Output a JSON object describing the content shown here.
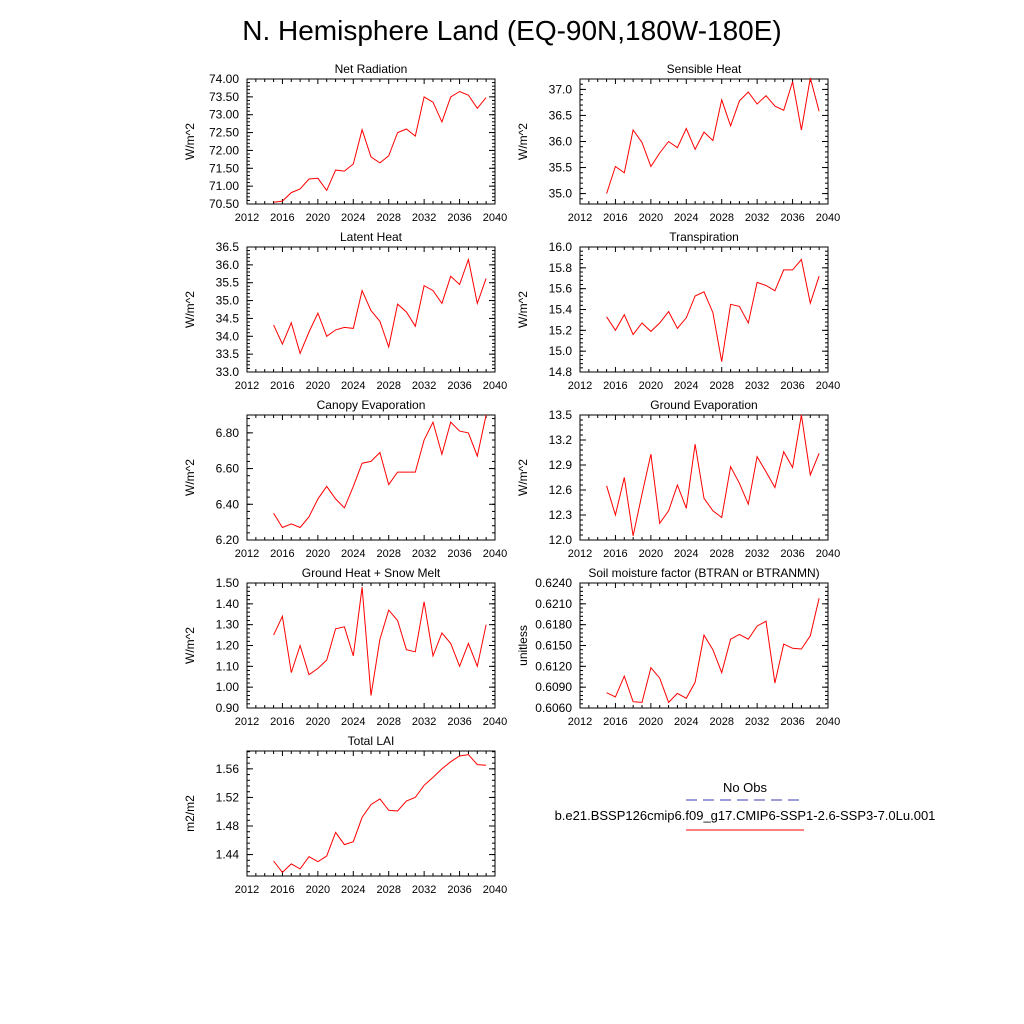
{
  "figure": {
    "title": "N. Hemisphere Land (EQ-90N,180W-180E)",
    "legend": {
      "obs_label": "No Obs",
      "obs_color": "#3b3bb3",
      "model_label": "b.e21.BSSP126cmip6.f09_g17.CMIP6-SSP1-2.6-SSP3-7.0Lu.001",
      "model_color": "#ff0000"
    }
  },
  "chart_data": [
    {
      "type": "line",
      "title": "Net Radiation",
      "ylabel": "W/m^2",
      "xlim": [
        2012,
        2040
      ],
      "xticks": [
        "2012",
        "2016",
        "2020",
        "2024",
        "2028",
        "2032",
        "2036",
        "2040"
      ],
      "ylim": [
        70.5,
        74.0
      ],
      "yticks": [
        "70.50",
        "71.00",
        "71.50",
        "72.00",
        "72.50",
        "73.00",
        "73.50",
        "74.00"
      ],
      "x": [
        2015,
        2016,
        2017,
        2018,
        2019,
        2020,
        2021,
        2022,
        2023,
        2024,
        2025,
        2026,
        2027,
        2028,
        2029,
        2030,
        2031,
        2032,
        2033,
        2034,
        2035,
        2036,
        2037,
        2038,
        2039
      ],
      "values": [
        70.55,
        70.58,
        70.82,
        70.92,
        71.2,
        71.22,
        70.88,
        71.45,
        71.42,
        71.62,
        72.58,
        71.82,
        71.65,
        71.85,
        72.5,
        72.6,
        72.4,
        73.5,
        73.35,
        72.8,
        73.5,
        73.65,
        73.55,
        73.18,
        73.48
      ]
    },
    {
      "type": "line",
      "title": "Sensible Heat",
      "ylabel": "W/m^2",
      "xlim": [
        2012,
        2040
      ],
      "xticks": [
        "2012",
        "2016",
        "2020",
        "2024",
        "2028",
        "2032",
        "2036",
        "2040"
      ],
      "ylim": [
        34.8,
        37.2
      ],
      "yticks": [
        "35.0",
        "35.5",
        "36.0",
        "36.5",
        "37.0"
      ],
      "x": [
        2015,
        2016,
        2017,
        2018,
        2019,
        2020,
        2021,
        2022,
        2023,
        2024,
        2025,
        2026,
        2027,
        2028,
        2029,
        2030,
        2031,
        2032,
        2033,
        2034,
        2035,
        2036,
        2037,
        2038,
        2039
      ],
      "values": [
        35.0,
        35.52,
        35.4,
        36.22,
        35.98,
        35.52,
        35.78,
        36.0,
        35.88,
        36.25,
        35.85,
        36.18,
        36.02,
        36.8,
        36.3,
        36.78,
        36.95,
        36.72,
        36.88,
        36.68,
        36.6,
        37.15,
        36.22,
        37.22,
        36.58
      ]
    },
    {
      "type": "line",
      "title": "Latent Heat",
      "ylabel": "W/m^2",
      "xlim": [
        2012,
        2040
      ],
      "xticks": [
        "2012",
        "2016",
        "2020",
        "2024",
        "2028",
        "2032",
        "2036",
        "2040"
      ],
      "ylim": [
        33.0,
        36.5
      ],
      "yticks": [
        "33.0",
        "33.5",
        "34.0",
        "34.5",
        "35.0",
        "35.5",
        "36.0",
        "36.5"
      ],
      "x": [
        2015,
        2016,
        2017,
        2018,
        2019,
        2020,
        2021,
        2022,
        2023,
        2024,
        2025,
        2026,
        2027,
        2028,
        2029,
        2030,
        2031,
        2032,
        2033,
        2034,
        2035,
        2036,
        2037,
        2038,
        2039
      ],
      "values": [
        34.32,
        33.78,
        34.38,
        33.52,
        34.12,
        34.65,
        34.0,
        34.18,
        34.25,
        34.22,
        35.28,
        34.72,
        34.42,
        33.7,
        34.9,
        34.68,
        34.28,
        35.42,
        35.28,
        34.92,
        35.68,
        35.45,
        36.15,
        34.92,
        35.62
      ]
    },
    {
      "type": "line",
      "title": "Transpiration",
      "ylabel": "W/m^2",
      "xlim": [
        2012,
        2040
      ],
      "xticks": [
        "2012",
        "2016",
        "2020",
        "2024",
        "2028",
        "2032",
        "2036",
        "2040"
      ],
      "ylim": [
        14.8,
        16.0
      ],
      "yticks": [
        "14.8",
        "15.0",
        "15.2",
        "15.4",
        "15.6",
        "15.8",
        "16.0"
      ],
      "x": [
        2015,
        2016,
        2017,
        2018,
        2019,
        2020,
        2021,
        2022,
        2023,
        2024,
        2025,
        2026,
        2027,
        2028,
        2029,
        2030,
        2031,
        2032,
        2033,
        2034,
        2035,
        2036,
        2037,
        2038,
        2039
      ],
      "values": [
        15.33,
        15.2,
        15.35,
        15.16,
        15.27,
        15.19,
        15.27,
        15.38,
        15.22,
        15.32,
        15.53,
        15.57,
        15.37,
        14.9,
        15.45,
        15.43,
        15.27,
        15.66,
        15.63,
        15.58,
        15.78,
        15.78,
        15.88,
        15.46,
        15.72
      ]
    },
    {
      "type": "line",
      "title": "Canopy Evaporation",
      "ylabel": "W/m^2",
      "xlim": [
        2012,
        2040
      ],
      "xticks": [
        "2012",
        "2016",
        "2020",
        "2024",
        "2028",
        "2032",
        "2036",
        "2040"
      ],
      "ylim": [
        6.2,
        6.9
      ],
      "yticks": [
        "6.20",
        "6.40",
        "6.60",
        "6.80"
      ],
      "x": [
        2015,
        2016,
        2017,
        2018,
        2019,
        2020,
        2021,
        2022,
        2023,
        2024,
        2025,
        2026,
        2027,
        2028,
        2029,
        2030,
        2031,
        2032,
        2033,
        2034,
        2035,
        2036,
        2037,
        2038,
        2039
      ],
      "values": [
        6.35,
        6.27,
        6.29,
        6.27,
        6.33,
        6.43,
        6.5,
        6.43,
        6.38,
        6.5,
        6.63,
        6.64,
        6.69,
        6.51,
        6.58,
        6.58,
        6.58,
        6.76,
        6.86,
        6.68,
        6.86,
        6.81,
        6.8,
        6.67,
        6.9
      ]
    },
    {
      "type": "line",
      "title": "Ground Evaporation",
      "ylabel": "W/m^2",
      "xlim": [
        2012,
        2040
      ],
      "xticks": [
        "2012",
        "2016",
        "2020",
        "2024",
        "2028",
        "2032",
        "2036",
        "2040"
      ],
      "ylim": [
        12.0,
        13.5
      ],
      "yticks": [
        "12.0",
        "12.3",
        "12.6",
        "12.9",
        "13.2",
        "13.5"
      ],
      "x": [
        2015,
        2016,
        2017,
        2018,
        2019,
        2020,
        2021,
        2022,
        2023,
        2024,
        2025,
        2026,
        2027,
        2028,
        2029,
        2030,
        2031,
        2032,
        2033,
        2034,
        2035,
        2036,
        2037,
        2038,
        2039
      ],
      "values": [
        12.65,
        12.3,
        12.75,
        12.05,
        12.55,
        13.03,
        12.2,
        12.35,
        12.66,
        12.38,
        13.15,
        12.5,
        12.35,
        12.27,
        12.88,
        12.68,
        12.43,
        13.0,
        12.82,
        12.63,
        13.06,
        12.87,
        13.5,
        12.78,
        13.04
      ]
    },
    {
      "type": "line",
      "title": "Ground Heat + Snow Melt",
      "ylabel": "W/m^2",
      "xlim": [
        2012,
        2040
      ],
      "xticks": [
        "2012",
        "2016",
        "2020",
        "2024",
        "2028",
        "2032",
        "2036",
        "2040"
      ],
      "ylim": [
        0.9,
        1.5
      ],
      "yticks": [
        "0.90",
        "1.00",
        "1.10",
        "1.20",
        "1.30",
        "1.40",
        "1.50"
      ],
      "x": [
        2015,
        2016,
        2017,
        2018,
        2019,
        2020,
        2021,
        2022,
        2023,
        2024,
        2025,
        2026,
        2027,
        2028,
        2029,
        2030,
        2031,
        2032,
        2033,
        2034,
        2035,
        2036,
        2037,
        2038,
        2039
      ],
      "values": [
        1.25,
        1.34,
        1.07,
        1.2,
        1.06,
        1.09,
        1.13,
        1.28,
        1.29,
        1.15,
        1.48,
        0.96,
        1.23,
        1.37,
        1.32,
        1.18,
        1.17,
        1.41,
        1.15,
        1.26,
        1.21,
        1.1,
        1.21,
        1.1,
        1.3
      ]
    },
    {
      "type": "line",
      "title": "Soil moisture factor (BTRAN or BTRANMN)",
      "ylabel": "unitless",
      "xlim": [
        2012,
        2040
      ],
      "xticks": [
        "2012",
        "2016",
        "2020",
        "2024",
        "2028",
        "2032",
        "2036",
        "2040"
      ],
      "ylim": [
        0.606,
        0.624
      ],
      "yticks": [
        "0.6060",
        "0.6090",
        "0.6120",
        "0.6150",
        "0.6180",
        "0.6210",
        "0.6240"
      ],
      "x": [
        2015,
        2016,
        2017,
        2018,
        2019,
        2020,
        2021,
        2022,
        2023,
        2024,
        2025,
        2026,
        2027,
        2028,
        2029,
        2030,
        2031,
        2032,
        2033,
        2034,
        2035,
        2036,
        2037,
        2038,
        2039
      ],
      "values": [
        0.6082,
        0.6076,
        0.6106,
        0.6069,
        0.6068,
        0.6118,
        0.6103,
        0.6068,
        0.6081,
        0.6074,
        0.6097,
        0.6165,
        0.6144,
        0.6111,
        0.6159,
        0.6166,
        0.6159,
        0.6178,
        0.6185,
        0.6096,
        0.6152,
        0.6146,
        0.6145,
        0.6164,
        0.6218
      ]
    },
    {
      "type": "line",
      "title": "Total LAI",
      "ylabel": "m2/m2",
      "xlim": [
        2012,
        2040
      ],
      "xticks": [
        "2012",
        "2016",
        "2020",
        "2024",
        "2028",
        "2032",
        "2036",
        "2040"
      ],
      "ylim": [
        1.41,
        1.585
      ],
      "yticks": [
        "1.44",
        "1.48",
        "1.52",
        "1.56"
      ],
      "x": [
        2015,
        2016,
        2017,
        2018,
        2019,
        2020,
        2021,
        2022,
        2023,
        2024,
        2025,
        2026,
        2027,
        2028,
        2029,
        2030,
        2031,
        2032,
        2033,
        2034,
        2035,
        2036,
        2037,
        2038,
        2039
      ],
      "values": [
        1.431,
        1.415,
        1.427,
        1.42,
        1.437,
        1.43,
        1.438,
        1.471,
        1.454,
        1.458,
        1.492,
        1.51,
        1.518,
        1.502,
        1.501,
        1.515,
        1.52,
        1.537,
        1.548,
        1.56,
        1.57,
        1.578,
        1.58,
        1.566,
        1.565
      ]
    }
  ]
}
